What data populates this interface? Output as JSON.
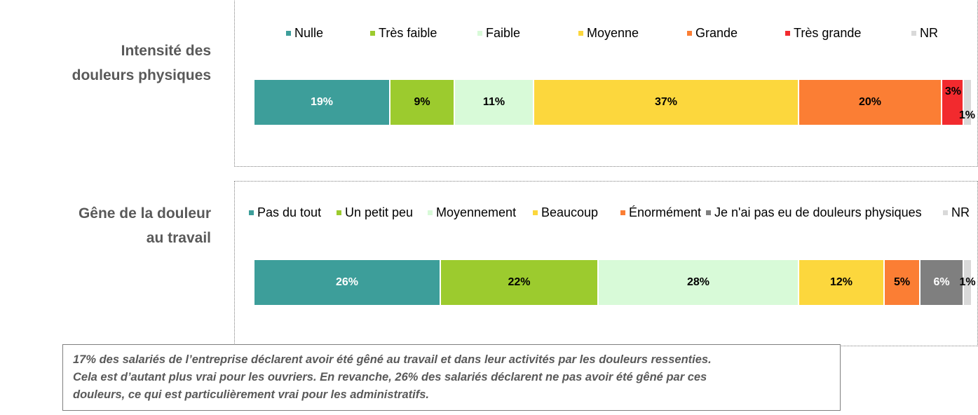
{
  "chart_data": [
    {
      "type": "bar",
      "orientation": "horizontal-stacked-100",
      "row_label_lines": [
        "Intensité des",
        "douleurs physiques"
      ],
      "legend_placement": "top",
      "grid": false,
      "series": [
        {
          "name": "Nulle",
          "value": 19,
          "label": "19%",
          "color": "#3d9e9a"
        },
        {
          "name": "Très faible",
          "value": 9,
          "label": "9%",
          "color": "#9ccb2e"
        },
        {
          "name": "Faible",
          "value": 11,
          "label": "11%",
          "color": "#d8fad8"
        },
        {
          "name": "Moyenne",
          "value": 37,
          "label": "37%",
          "color": "#fcd73d"
        },
        {
          "name": "Grande",
          "value": 20,
          "label": "20%",
          "color": "#fb7e34"
        },
        {
          "name": "Très grande",
          "value": 3,
          "label": "3%",
          "color": "#f22a2e"
        },
        {
          "name": "NR",
          "value": 1,
          "label": "1%",
          "color": "#d9d9d9"
        }
      ]
    },
    {
      "type": "bar",
      "orientation": "horizontal-stacked-100",
      "row_label_lines": [
        "Gêne de la douleur",
        "au travail"
      ],
      "legend_placement": "top",
      "grid": false,
      "series": [
        {
          "name": "Pas du tout",
          "value": 26,
          "label": "26%",
          "color": "#3d9e9a"
        },
        {
          "name": "Un petit peu",
          "value": 22,
          "label": "22%",
          "color": "#9ccb2e"
        },
        {
          "name": "Moyennement",
          "value": 28,
          "label": "28%",
          "color": "#d8fad8"
        },
        {
          "name": "Beaucoup",
          "value": 12,
          "label": "12%",
          "color": "#fcd73d"
        },
        {
          "name": "Énormément",
          "value": 5,
          "label": "5%",
          "color": "#fb7e34"
        },
        {
          "name": "Je n'ai pas eu de douleurs physiques",
          "value": 6,
          "label": "6%",
          "color": "#7f7f7f"
        },
        {
          "name": "NR",
          "value": 1,
          "label": "1%",
          "color": "#d9d9d9"
        }
      ]
    }
  ],
  "note": {
    "lines": [
      "17% des salariés de l’entreprise déclarent avoir été gêné au travail et dans leur activités par les douleurs ressenties.",
      "Cela est d’autant plus vrai pour les ouvriers. En revanche, 26% des salariés déclarent ne pas avoir été gêné par ces",
      "douleurs, ce qui est particulièrement vrai pour les administratifs."
    ]
  }
}
